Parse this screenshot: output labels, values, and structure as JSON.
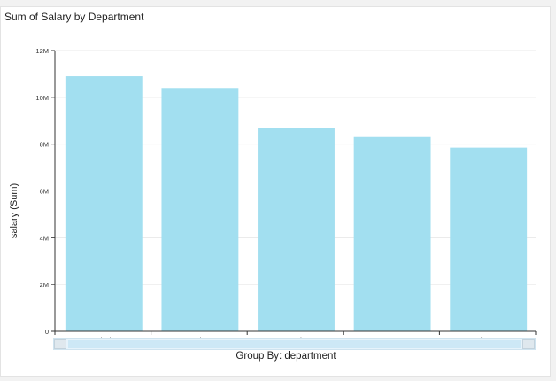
{
  "chart_data": {
    "type": "bar",
    "title": "Sum of Salary by Department",
    "xlabel": "Group By: department",
    "ylabel": "salary (Sum)",
    "categories": [
      "Marketing",
      "Sales",
      "Operations",
      "IT",
      "Finance"
    ],
    "values": [
      10900000,
      10400000,
      8700000,
      8300000,
      7850000
    ],
    "ylim": [
      0,
      12000000
    ],
    "yticks": [
      0,
      2000000,
      4000000,
      6000000,
      8000000,
      10000000,
      12000000
    ],
    "ytick_labels": [
      "0",
      "2M",
      "4M",
      "6M",
      "8M",
      "10M",
      "12M"
    ],
    "grid": true,
    "legend": "none",
    "bar_color": "#a2dff0"
  }
}
